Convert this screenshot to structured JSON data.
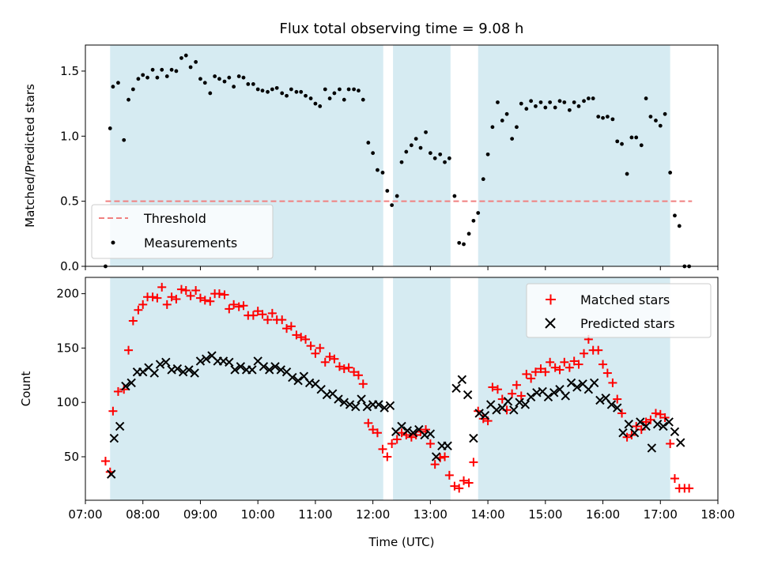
{
  "chart_data": [
    {
      "type": "scatter",
      "title": "Flux total observing time = 9.08 h",
      "xlabel": "",
      "ylabel": "Matched/Predicted stars",
      "xlim": [
        7.0,
        18.0
      ],
      "ylim": [
        0,
        1.7
      ],
      "yticks": [
        0.0,
        0.5,
        1.0,
        1.5
      ],
      "ytick_labels": [
        "0.0",
        "0.5",
        "1.0",
        "1.5"
      ],
      "legend_position": "lower-left",
      "threshold": {
        "name": "Threshold",
        "value": 0.5,
        "x_range": [
          7.35,
          17.55
        ],
        "color": "#f08080"
      },
      "shaded_intervals": [
        [
          7.43,
          12.18
        ],
        [
          12.35,
          13.35
        ],
        [
          13.83,
          17.17
        ]
      ],
      "shade_color": "#add8e6",
      "series": [
        {
          "name": "Measurements",
          "color": "#000000",
          "x": [
            7.35,
            7.43,
            7.48,
            7.57,
            7.67,
            7.75,
            7.83,
            7.92,
            8.0,
            8.08,
            8.17,
            8.25,
            8.33,
            8.42,
            8.5,
            8.58,
            8.67,
            8.75,
            8.83,
            8.92,
            9.0,
            9.08,
            9.17,
            9.25,
            9.33,
            9.42,
            9.5,
            9.58,
            9.67,
            9.75,
            9.83,
            9.92,
            10.0,
            10.08,
            10.17,
            10.25,
            10.33,
            10.42,
            10.5,
            10.58,
            10.67,
            10.75,
            10.83,
            10.92,
            11.0,
            11.08,
            11.17,
            11.25,
            11.33,
            11.42,
            11.5,
            11.58,
            11.67,
            11.75,
            11.83,
            11.92,
            12.0,
            12.08,
            12.17,
            12.25,
            12.33,
            12.42,
            12.5,
            12.58,
            12.67,
            12.75,
            12.83,
            12.92,
            13.0,
            13.08,
            13.17,
            13.25,
            13.33,
            13.42,
            13.5,
            13.58,
            13.67,
            13.75,
            13.83,
            13.92,
            14.0,
            14.08,
            14.17,
            14.25,
            14.33,
            14.42,
            14.5,
            14.58,
            14.67,
            14.75,
            14.83,
            14.92,
            15.0,
            15.08,
            15.17,
            15.25,
            15.33,
            15.42,
            15.5,
            15.58,
            15.67,
            15.75,
            15.83,
            15.92,
            16.0,
            16.08,
            16.17,
            16.25,
            16.33,
            16.42,
            16.5,
            16.58,
            16.67,
            16.75,
            16.83,
            16.92,
            17.0,
            17.08,
            17.17,
            17.25,
            17.33,
            17.42,
            17.5
          ],
          "y": [
            0.0,
            1.06,
            1.38,
            1.41,
            0.97,
            1.28,
            1.36,
            1.44,
            1.47,
            1.45,
            1.51,
            1.45,
            1.51,
            1.46,
            1.51,
            1.5,
            1.6,
            1.62,
            1.53,
            1.57,
            1.44,
            1.41,
            1.33,
            1.46,
            1.44,
            1.42,
            1.45,
            1.38,
            1.46,
            1.45,
            1.4,
            1.4,
            1.36,
            1.35,
            1.34,
            1.36,
            1.37,
            1.33,
            1.31,
            1.36,
            1.34,
            1.34,
            1.31,
            1.29,
            1.25,
            1.23,
            1.36,
            1.29,
            1.33,
            1.36,
            1.28,
            1.36,
            1.36,
            1.35,
            1.28,
            0.95,
            0.87,
            0.74,
            0.72,
            0.58,
            0.47,
            0.54,
            0.8,
            0.88,
            0.93,
            0.98,
            0.91,
            1.03,
            0.87,
            0.83,
            0.86,
            0.8,
            0.83,
            0.54,
            0.18,
            0.17,
            0.25,
            0.35,
            0.41,
            0.67,
            0.86,
            1.07,
            1.26,
            1.12,
            1.17,
            0.98,
            1.07,
            1.25,
            1.21,
            1.27,
            1.23,
            1.26,
            1.22,
            1.26,
            1.22,
            1.27,
            1.26,
            1.2,
            1.26,
            1.23,
            1.27,
            1.29,
            1.29,
            1.15,
            1.14,
            1.15,
            1.13,
            0.96,
            0.94,
            0.71,
            0.99,
            0.99,
            0.93,
            1.29,
            1.15,
            1.12,
            1.08,
            1.17,
            0.72,
            0.39,
            0.31,
            0.0,
            0.0
          ]
        }
      ]
    },
    {
      "type": "scatter",
      "title": "",
      "xlabel": "Time (UTC)",
      "ylabel": "Count",
      "xlim": [
        7.0,
        18.0
      ],
      "ylim": [
        10,
        215
      ],
      "yticks": [
        50,
        100,
        150,
        200
      ],
      "ytick_labels": [
        "50",
        "100",
        "150",
        "200"
      ],
      "xticks": [
        7,
        8,
        9,
        10,
        11,
        12,
        13,
        14,
        15,
        16,
        17,
        18
      ],
      "xtick_labels": [
        "07:00",
        "08:00",
        "09:00",
        "10:00",
        "11:00",
        "12:00",
        "13:00",
        "14:00",
        "15:00",
        "16:00",
        "17:00",
        "18:00"
      ],
      "legend_position": "top-right",
      "shaded_intervals": [
        [
          7.43,
          12.18
        ],
        [
          12.35,
          13.35
        ],
        [
          13.83,
          17.17
        ]
      ],
      "shade_color": "#add8e6",
      "series": [
        {
          "name": "Matched stars",
          "marker": "plus",
          "color": "#ff0000",
          "x": [
            7.35,
            7.43,
            7.48,
            7.57,
            7.67,
            7.75,
            7.83,
            7.92,
            8.0,
            8.08,
            8.17,
            8.25,
            8.33,
            8.42,
            8.5,
            8.58,
            8.67,
            8.75,
            8.83,
            8.92,
            9.0,
            9.08,
            9.17,
            9.25,
            9.33,
            9.42,
            9.5,
            9.58,
            9.67,
            9.75,
            9.83,
            9.92,
            10.0,
            10.08,
            10.17,
            10.25,
            10.33,
            10.42,
            10.5,
            10.58,
            10.67,
            10.75,
            10.83,
            10.92,
            11.0,
            11.08,
            11.17,
            11.25,
            11.33,
            11.42,
            11.5,
            11.58,
            11.67,
            11.75,
            11.83,
            11.92,
            12.0,
            12.08,
            12.17,
            12.25,
            12.33,
            12.42,
            12.5,
            12.58,
            12.67,
            12.75,
            12.83,
            12.92,
            13.0,
            13.08,
            13.17,
            13.25,
            13.33,
            13.42,
            13.5,
            13.58,
            13.67,
            13.75,
            13.83,
            13.92,
            14.0,
            14.08,
            14.17,
            14.25,
            14.33,
            14.42,
            14.5,
            14.58,
            14.67,
            14.75,
            14.83,
            14.92,
            15.0,
            15.08,
            15.17,
            15.25,
            15.33,
            15.42,
            15.5,
            15.58,
            15.67,
            15.75,
            15.83,
            15.92,
            16.0,
            16.08,
            16.17,
            16.25,
            16.33,
            16.42,
            16.5,
            16.58,
            16.67,
            16.75,
            16.83,
            16.92,
            17.0,
            17.08,
            17.17,
            17.25,
            17.33,
            17.42,
            17.5
          ],
          "y": [
            46,
            36,
            92,
            110,
            112,
            148,
            175,
            185,
            190,
            197,
            197,
            196,
            206,
            190,
            197,
            195,
            204,
            203,
            198,
            203,
            196,
            194,
            193,
            200,
            200,
            199,
            186,
            190,
            188,
            189,
            180,
            180,
            184,
            181,
            176,
            182,
            176,
            176,
            168,
            170,
            162,
            160,
            158,
            152,
            145,
            150,
            137,
            142,
            140,
            133,
            131,
            132,
            128,
            125,
            117,
            81,
            75,
            72,
            57,
            50,
            62,
            66,
            72,
            70,
            68,
            70,
            73,
            75,
            62,
            43,
            49,
            50,
            33,
            23,
            21,
            28,
            26,
            45,
            92,
            85,
            83,
            114,
            112,
            103,
            93,
            108,
            116,
            106,
            126,
            122,
            128,
            131,
            128,
            137,
            132,
            130,
            137,
            132,
            138,
            135,
            145,
            158,
            148,
            148,
            135,
            127,
            118,
            103,
            90,
            68,
            70,
            78,
            75,
            82,
            84,
            90,
            89,
            86,
            62,
            30,
            21,
            21,
            21
          ]
        },
        {
          "name": "Predicted stars",
          "marker": "x",
          "color": "#000000",
          "x": [
            7.45,
            7.5,
            7.6,
            7.7,
            7.8,
            7.9,
            8.0,
            8.1,
            8.2,
            8.3,
            8.4,
            8.5,
            8.6,
            8.7,
            8.8,
            8.9,
            9.0,
            9.1,
            9.2,
            9.3,
            9.4,
            9.5,
            9.6,
            9.7,
            9.8,
            9.9,
            10.0,
            10.1,
            10.2,
            10.3,
            10.4,
            10.5,
            10.6,
            10.7,
            10.8,
            10.9,
            11.0,
            11.1,
            11.2,
            11.3,
            11.4,
            11.5,
            11.6,
            11.7,
            11.8,
            11.9,
            12.0,
            12.1,
            12.2,
            12.3,
            12.4,
            12.5,
            12.6,
            12.7,
            12.8,
            12.9,
            13.0,
            13.1,
            13.2,
            13.3,
            13.45,
            13.55,
            13.65,
            13.75,
            13.85,
            13.95,
            14.05,
            14.15,
            14.25,
            14.35,
            14.45,
            14.55,
            14.65,
            14.75,
            14.85,
            14.95,
            15.05,
            15.15,
            15.25,
            15.35,
            15.45,
            15.55,
            15.65,
            15.75,
            15.85,
            15.95,
            16.05,
            16.15,
            16.25,
            16.35,
            16.45,
            16.55,
            16.65,
            16.75,
            16.85,
            16.95,
            17.05,
            17.15,
            17.25,
            17.35
          ],
          "y": [
            34,
            67,
            78,
            115,
            118,
            128,
            128,
            132,
            127,
            135,
            137,
            130,
            131,
            128,
            130,
            127,
            138,
            140,
            143,
            138,
            138,
            137,
            130,
            133,
            130,
            130,
            138,
            133,
            130,
            133,
            130,
            128,
            123,
            120,
            124,
            118,
            117,
            112,
            107,
            108,
            103,
            100,
            98,
            96,
            103,
            96,
            98,
            98,
            95,
            97,
            73,
            78,
            74,
            72,
            75,
            70,
            71,
            50,
            60,
            60,
            113,
            121,
            107,
            67,
            90,
            88,
            98,
            93,
            95,
            101,
            93,
            100,
            98,
            105,
            109,
            110,
            105,
            109,
            112,
            106,
            118,
            114,
            117,
            112,
            118,
            102,
            104,
            98,
            95,
            72,
            80,
            72,
            82,
            78,
            58,
            80,
            78,
            82,
            73,
            63
          ]
        }
      ]
    }
  ]
}
